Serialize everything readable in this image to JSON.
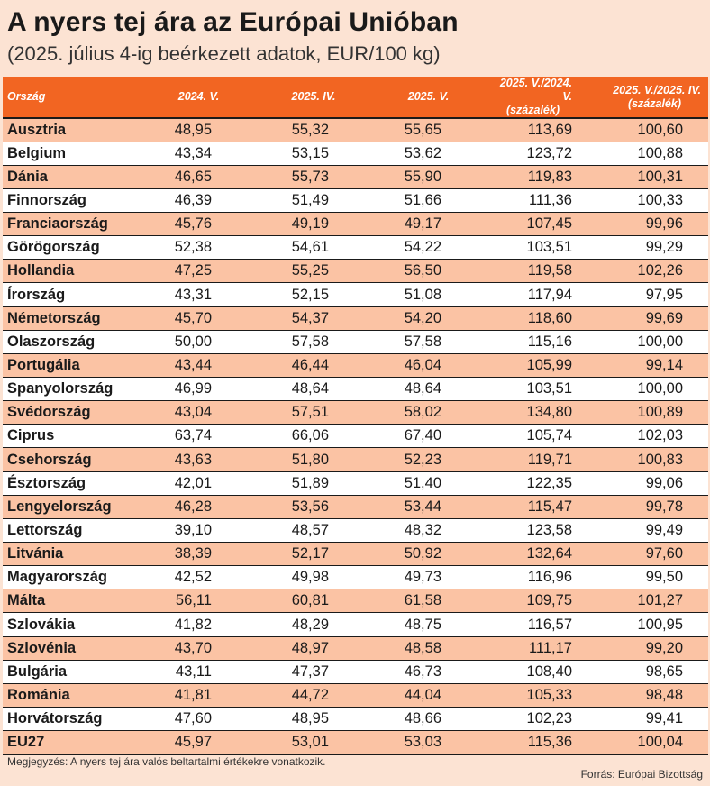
{
  "title": "A nyers tej ára az Európai Unióban",
  "subtitle": "(2025. július 4-ig beérkezett adatok, EUR/100 kg)",
  "table": {
    "headers": {
      "country": "Ország",
      "v2024": "2024. V.",
      "v2025iv": "2025. IV.",
      "v2025v": "2025. V.",
      "r1_line1": "2025. V./2024. V.",
      "r1_line2": "(százalék)",
      "r2_line1": "2025. V./2025. IV.",
      "r2_line2": "(százalék)"
    },
    "rows": [
      {
        "country": "Ausztria",
        "v2024": "48,95",
        "v2025iv": "55,32",
        "v2025v": "55,65",
        "r1": "113,69",
        "r2": "100,60"
      },
      {
        "country": "Belgium",
        "v2024": "43,34",
        "v2025iv": "53,15",
        "v2025v": "53,62",
        "r1": "123,72",
        "r2": "100,88"
      },
      {
        "country": "Dánia",
        "v2024": "46,65",
        "v2025iv": "55,73",
        "v2025v": "55,90",
        "r1": "119,83",
        "r2": "100,31"
      },
      {
        "country": "Finnország",
        "v2024": "46,39",
        "v2025iv": "51,49",
        "v2025v": "51,66",
        "r1": "111,36",
        "r2": "100,33"
      },
      {
        "country": "Franciaország",
        "v2024": "45,76",
        "v2025iv": "49,19",
        "v2025v": "49,17",
        "r1": "107,45",
        "r2": "99,96"
      },
      {
        "country": "Görögország",
        "v2024": "52,38",
        "v2025iv": "54,61",
        "v2025v": "54,22",
        "r1": "103,51",
        "r2": "99,29"
      },
      {
        "country": "Hollandia",
        "v2024": "47,25",
        "v2025iv": "55,25",
        "v2025v": "56,50",
        "r1": "119,58",
        "r2": "102,26"
      },
      {
        "country": "Írország",
        "v2024": "43,31",
        "v2025iv": "52,15",
        "v2025v": "51,08",
        "r1": "117,94",
        "r2": "97,95"
      },
      {
        "country": "Németország",
        "v2024": "45,70",
        "v2025iv": "54,37",
        "v2025v": "54,20",
        "r1": "118,60",
        "r2": "99,69"
      },
      {
        "country": "Olaszország",
        "v2024": "50,00",
        "v2025iv": "57,58",
        "v2025v": "57,58",
        "r1": "115,16",
        "r2": "100,00"
      },
      {
        "country": "Portugália",
        "v2024": "43,44",
        "v2025iv": "46,44",
        "v2025v": "46,04",
        "r1": "105,99",
        "r2": "99,14"
      },
      {
        "country": "Spanyolország",
        "v2024": "46,99",
        "v2025iv": "48,64",
        "v2025v": "48,64",
        "r1": "103,51",
        "r2": "100,00"
      },
      {
        "country": "Svédország",
        "v2024": "43,04",
        "v2025iv": "57,51",
        "v2025v": "58,02",
        "r1": "134,80",
        "r2": "100,89"
      },
      {
        "country": "Ciprus",
        "v2024": "63,74",
        "v2025iv": "66,06",
        "v2025v": "67,40",
        "r1": "105,74",
        "r2": "102,03"
      },
      {
        "country": "Csehország",
        "v2024": "43,63",
        "v2025iv": "51,80",
        "v2025v": "52,23",
        "r1": "119,71",
        "r2": "100,83"
      },
      {
        "country": "Észtország",
        "v2024": "42,01",
        "v2025iv": "51,89",
        "v2025v": "51,40",
        "r1": "122,35",
        "r2": "99,06"
      },
      {
        "country": "Lengyelország",
        "v2024": "46,28",
        "v2025iv": "53,56",
        "v2025v": "53,44",
        "r1": "115,47",
        "r2": "99,78"
      },
      {
        "country": "Lettország",
        "v2024": "39,10",
        "v2025iv": "48,57",
        "v2025v": "48,32",
        "r1": "123,58",
        "r2": "99,49"
      },
      {
        "country": "Litvánia",
        "v2024": "38,39",
        "v2025iv": "52,17",
        "v2025v": "50,92",
        "r1": "132,64",
        "r2": "97,60"
      },
      {
        "country": "Magyarország",
        "v2024": "42,52",
        "v2025iv": "49,98",
        "v2025v": "49,73",
        "r1": "116,96",
        "r2": "99,50"
      },
      {
        "country": "Málta",
        "v2024": "56,11",
        "v2025iv": "60,81",
        "v2025v": "61,58",
        "r1": "109,75",
        "r2": "101,27"
      },
      {
        "country": "Szlovákia",
        "v2024": "41,82",
        "v2025iv": "48,29",
        "v2025v": "48,75",
        "r1": "116,57",
        "r2": "100,95"
      },
      {
        "country": "Szlovénia",
        "v2024": "43,70",
        "v2025iv": "48,97",
        "v2025v": "48,58",
        "r1": "111,17",
        "r2": "99,20"
      },
      {
        "country": "Bulgária",
        "v2024": "43,11",
        "v2025iv": "47,37",
        "v2025v": "46,73",
        "r1": "108,40",
        "r2": "98,65"
      },
      {
        "country": "Románia",
        "v2024": "41,81",
        "v2025iv": "44,72",
        "v2025v": "44,04",
        "r1": "105,33",
        "r2": "98,48"
      },
      {
        "country": "Horvátország",
        "v2024": "47,60",
        "v2025iv": "48,95",
        "v2025v": "48,66",
        "r1": "102,23",
        "r2": "99,41"
      },
      {
        "country": "EU27",
        "v2024": "45,97",
        "v2025iv": "53,01",
        "v2025v": "53,03",
        "r1": "115,36",
        "r2": "100,04"
      }
    ]
  },
  "note": "Megjegyzés: A nyers tej ára valós beltartalmi értékekre vonatkozik.",
  "source": "Forrás: Európai Bizottság",
  "colors": {
    "header_bg": "#f26522",
    "odd_row_bg": "#fbc3a4",
    "even_row_bg": "#ffffff",
    "page_bg": "#fce3d3"
  }
}
